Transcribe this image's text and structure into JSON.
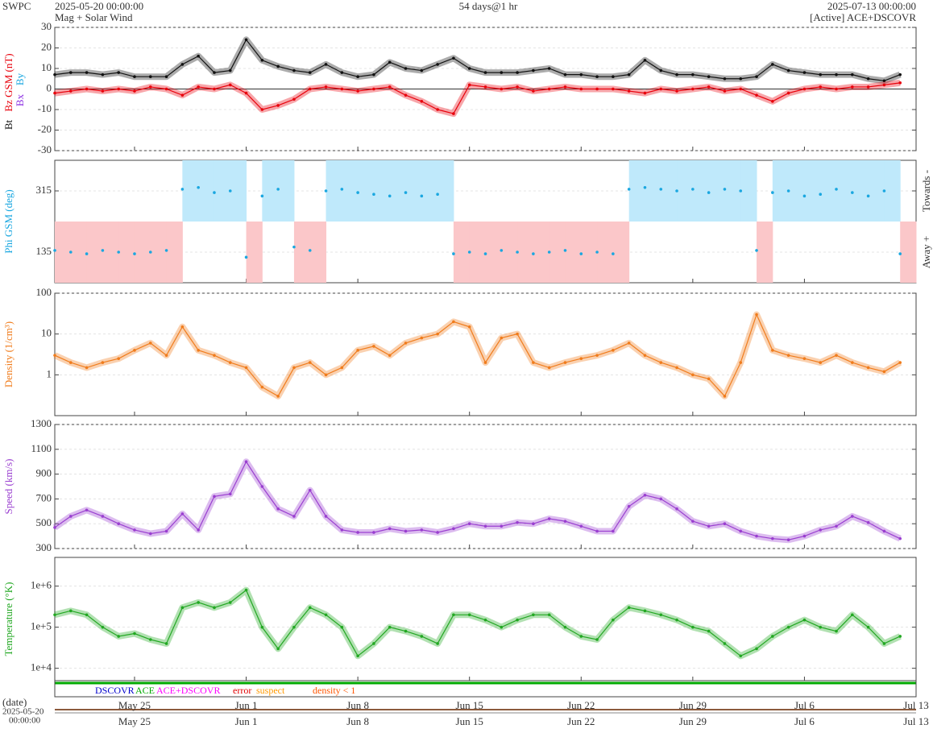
{
  "chart_data": {
    "type": "line",
    "source": "SWPC",
    "start": "2025-05-20 00:00:00",
    "title": "Mag + Solar Wind",
    "span": "54 days@1 hr",
    "end": "2025-07-13 00:00:00",
    "status": "[Active] ACE+DSCOVR",
    "grid": true,
    "x": [
      "2025-05-20",
      "2025-05-21",
      "2025-05-22",
      "2025-05-23",
      "2025-05-24",
      "2025-05-25",
      "2025-05-26",
      "2025-05-27",
      "2025-05-28",
      "2025-05-29",
      "2025-05-30",
      "2025-05-31",
      "2025-06-01",
      "2025-06-02",
      "2025-06-03",
      "2025-06-04",
      "2025-06-05",
      "2025-06-06",
      "2025-06-07",
      "2025-06-08",
      "2025-06-09",
      "2025-06-10",
      "2025-06-11",
      "2025-06-12",
      "2025-06-13",
      "2025-06-14",
      "2025-06-15",
      "2025-06-16",
      "2025-06-17",
      "2025-06-18",
      "2025-06-19",
      "2025-06-20",
      "2025-06-21",
      "2025-06-22",
      "2025-06-23",
      "2025-06-24",
      "2025-06-25",
      "2025-06-26",
      "2025-06-27",
      "2025-06-28",
      "2025-06-29",
      "2025-06-30",
      "2025-07-01",
      "2025-07-02",
      "2025-07-03",
      "2025-07-04",
      "2025-07-05",
      "2025-07-06",
      "2025-07-07",
      "2025-07-08",
      "2025-07-09",
      "2025-07-10",
      "2025-07-11",
      "2025-07-12"
    ],
    "xlim": [
      "2025-05-20",
      "2025-07-13"
    ],
    "xticks": [
      {
        "value": "2025-05-25",
        "label": "May 25"
      },
      {
        "value": "2025-06-01",
        "label": "Jun 1"
      },
      {
        "value": "2025-06-08",
        "label": "Jun 8"
      },
      {
        "value": "2025-06-15",
        "label": "Jun 15"
      },
      {
        "value": "2025-06-22",
        "label": "Jun 22"
      },
      {
        "value": "2025-06-29",
        "label": "Jun 29"
      },
      {
        "value": "2025-07-06",
        "label": "Jul 6"
      },
      {
        "value": "2025-07-13",
        "label": "Jul 13"
      }
    ],
    "date_axis": {
      "name": "(date)",
      "start_date": "2025-05-20",
      "start_time": "00:00:00"
    },
    "panels": [
      {
        "type": "line",
        "ylim": [
          -30,
          30
        ],
        "yticks": [
          -30,
          -20,
          -10,
          0,
          10,
          20,
          30
        ],
        "log": false,
        "components": [
          {
            "name": "Bx",
            "color": "#8a2be2"
          },
          {
            "name": "By",
            "color": "#1aa7e0"
          }
        ],
        "series": [
          {
            "name": "Bt",
            "color": "#111111",
            "values": [
              7,
              8,
              8,
              7,
              8,
              6,
              6,
              6,
              12,
              16,
              8,
              9,
              24,
              14,
              11,
              9,
              8,
              12,
              8,
              6,
              7,
              13,
              10,
              9,
              12,
              15,
              10,
              8,
              8,
              8,
              9,
              10,
              7,
              7,
              6,
              6,
              7,
              14,
              9,
              7,
              7,
              6,
              5,
              5,
              6,
              12,
              9,
              8,
              7,
              7,
              7,
              5,
              4,
              7
            ]
          },
          {
            "name": "Bz GSM (nT)",
            "color": "#e8000b",
            "values": [
              -2,
              -1,
              0,
              -1,
              0,
              -1,
              1,
              0,
              -3,
              1,
              0,
              2,
              -2,
              -10,
              -8,
              -5,
              0,
              1,
              0,
              -1,
              0,
              1,
              -3,
              -6,
              -10,
              -12,
              2,
              1,
              0,
              1,
              -1,
              0,
              1,
              0,
              0,
              0,
              -1,
              -2,
              0,
              -1,
              0,
              1,
              -1,
              0,
              -3,
              -6,
              -2,
              0,
              1,
              0,
              1,
              1,
              2,
              3
            ]
          }
        ]
      },
      {
        "type": "sector",
        "ylim": [
          45,
          405
        ],
        "yticks": [
          315,
          135
        ],
        "log": false,
        "sector_labels": [
          "Towards -",
          "Away +"
        ],
        "sector_colors": [
          "#bfe9fb",
          "#fbc7c9"
        ],
        "series": [
          {
            "name": "Phi GSM (deg)",
            "color": "#1aa7e0",
            "values": [
              140,
              135,
              130,
              140,
              135,
              130,
              135,
              140,
              320,
              325,
              310,
              315,
              120,
              300,
              320,
              150,
              140,
              315,
              320,
              310,
              305,
              300,
              310,
              300,
              305,
              130,
              135,
              130,
              140,
              135,
              130,
              135,
              140,
              130,
              135,
              130,
              320,
              325,
              320,
              315,
              320,
              310,
              320,
              315,
              140,
              310,
              315,
              300,
              305,
              320,
              310,
              300,
              315,
              130
            ]
          }
        ]
      },
      {
        "type": "line",
        "ylim": [
          0.1,
          100
        ],
        "yticks": [
          100,
          10,
          1
        ],
        "log": true,
        "series": [
          {
            "name": "Density (1/cm³)",
            "color": "#f07c1c",
            "values": [
              3,
              2,
              1.5,
              2,
              2.5,
              4,
              6,
              3,
              15,
              4,
              3,
              2,
              1.5,
              0.5,
              0.3,
              1.5,
              2,
              1,
              1.5,
              4,
              5,
              3,
              6,
              8,
              10,
              20,
              15,
              2,
              8,
              10,
              2,
              1.5,
              2,
              2.5,
              3,
              4,
              6,
              3,
              2,
              1.5,
              1,
              0.8,
              0.3,
              2,
              30,
              4,
              3,
              2.5,
              2,
              3,
              2,
              1.5,
              1.2,
              2
            ]
          }
        ]
      },
      {
        "type": "line",
        "ylim": [
          300,
          1300
        ],
        "yticks": [
          300,
          500,
          700,
          900,
          1100,
          1300
        ],
        "log": false,
        "series": [
          {
            "name": "Speed (km/s)",
            "color": "#9a3fd0",
            "values": [
              470,
              560,
              610,
              560,
              500,
              450,
              420,
              440,
              580,
              450,
              720,
              740,
              1000,
              800,
              620,
              560,
              770,
              560,
              450,
              430,
              430,
              460,
              440,
              450,
              430,
              460,
              500,
              480,
              480,
              510,
              500,
              540,
              520,
              480,
              440,
              440,
              640,
              730,
              700,
              620,
              520,
              480,
              500,
              440,
              400,
              380,
              370,
              400,
              450,
              480,
              560,
              510,
              440,
              380
            ]
          }
        ]
      },
      {
        "type": "line",
        "ylim": [
          5000,
          5000000
        ],
        "yticks": [
          {
            "value": 1000000,
            "label": "1e+6"
          },
          {
            "value": 100000,
            "label": "1e+5"
          },
          {
            "value": 10000,
            "label": "1e+4"
          }
        ],
        "log": true,
        "series": [
          {
            "name": "Temperature (°K)",
            "color": "#22a822",
            "values": [
              200000,
              250000,
              200000,
              100000,
              60000,
              70000,
              50000,
              40000,
              300000,
              400000,
              300000,
              400000,
              800000,
              100000,
              30000,
              100000,
              300000,
              200000,
              100000,
              20000,
              40000,
              100000,
              80000,
              60000,
              40000,
              200000,
              200000,
              150000,
              100000,
              150000,
              200000,
              200000,
              100000,
              60000,
              50000,
              150000,
              300000,
              250000,
              200000,
              150000,
              100000,
              80000,
              40000,
              20000,
              30000,
              60000,
              100000,
              150000,
              100000,
              80000,
              200000,
              100000,
              40000,
              60000
            ]
          }
        ]
      }
    ],
    "status_legend": [
      {
        "label": "DSCOVR",
        "color": "#0000cc"
      },
      {
        "label": "ACE",
        "color": "#00aa00"
      },
      {
        "label": "ACE+DSCOVR",
        "color": "#ff00ff"
      },
      {
        "label": "error",
        "color": "#e00000"
      },
      {
        "label": "suspect",
        "color": "#ff9900"
      },
      {
        "label": "density < 1",
        "color": "#ff5500"
      }
    ]
  }
}
